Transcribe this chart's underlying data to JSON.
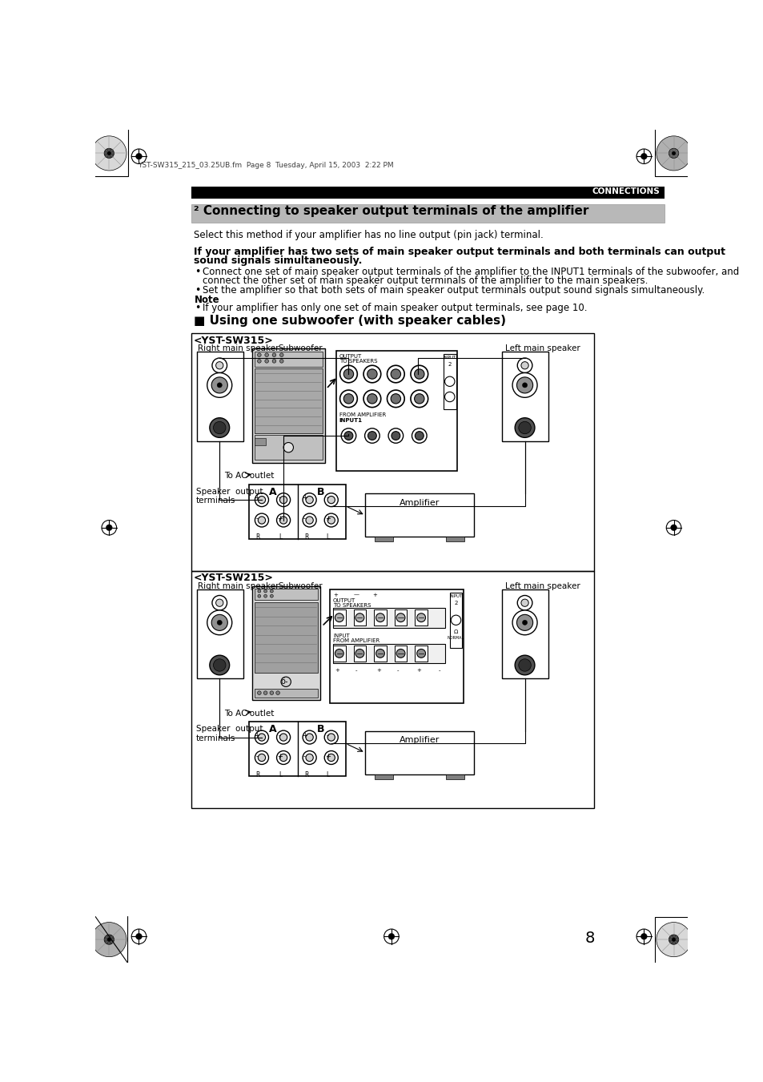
{
  "page_background": "#ffffff",
  "header_bar_color": "#000000",
  "header_text": "CONNECTIONS",
  "header_text_color": "#ffffff",
  "section_box_color": "#b8b8b8",
  "section_title": "² Connecting to speaker output terminals of the amplifier",
  "intro_text": "Select this method if your amplifier has no line output (pin jack) terminal.",
  "bold_heading_line1": "If your amplifier has two sets of main speaker output terminals and both terminals can output",
  "bold_heading_line2": "sound signals simultaneously.",
  "bullet1_line1": "Connect one set of main speaker output terminals of the amplifier to the INPUT1 terminals of the subwoofer, and",
  "bullet1_line2": "connect the other set of main speaker output terminals of the amplifier to the main speakers.",
  "bullet2": "Set the amplifier so that both sets of main speaker output terminals output sound signals simultaneously.",
  "note_label": "Note",
  "note_bullet": "If your amplifier has only one set of main speaker output terminals, see page 10.",
  "section_heading": "■ Using one subwoofer (with speaker cables)",
  "sw315_label": "<YST-SW315>",
  "sw315_right_label": "Right main speaker",
  "sw315_sub_label": "Subwoofer",
  "sw315_left_label": "Left main speaker",
  "sw315_ac_label": "To AC outlet",
  "sw315_speaker_out_label": "Speaker  output\nterminals",
  "sw315_amplifier_label": "Amplifier",
  "sw215_label": "<YST-SW215>",
  "sw215_right_label": "Right main speaker",
  "sw215_sub_label": "Subwoofer",
  "sw215_left_label": "Left main speaker",
  "sw215_ac_label": "To AC outlet",
  "sw215_speaker_out_label": "Speaker  output\nterminals",
  "sw215_amplifier_label": "Amplifier",
  "page_number": "8",
  "file_info": "YST-SW315_215_03.25UB.fm  Page 8  Tuesday, April 15, 2003  2:22 PM"
}
